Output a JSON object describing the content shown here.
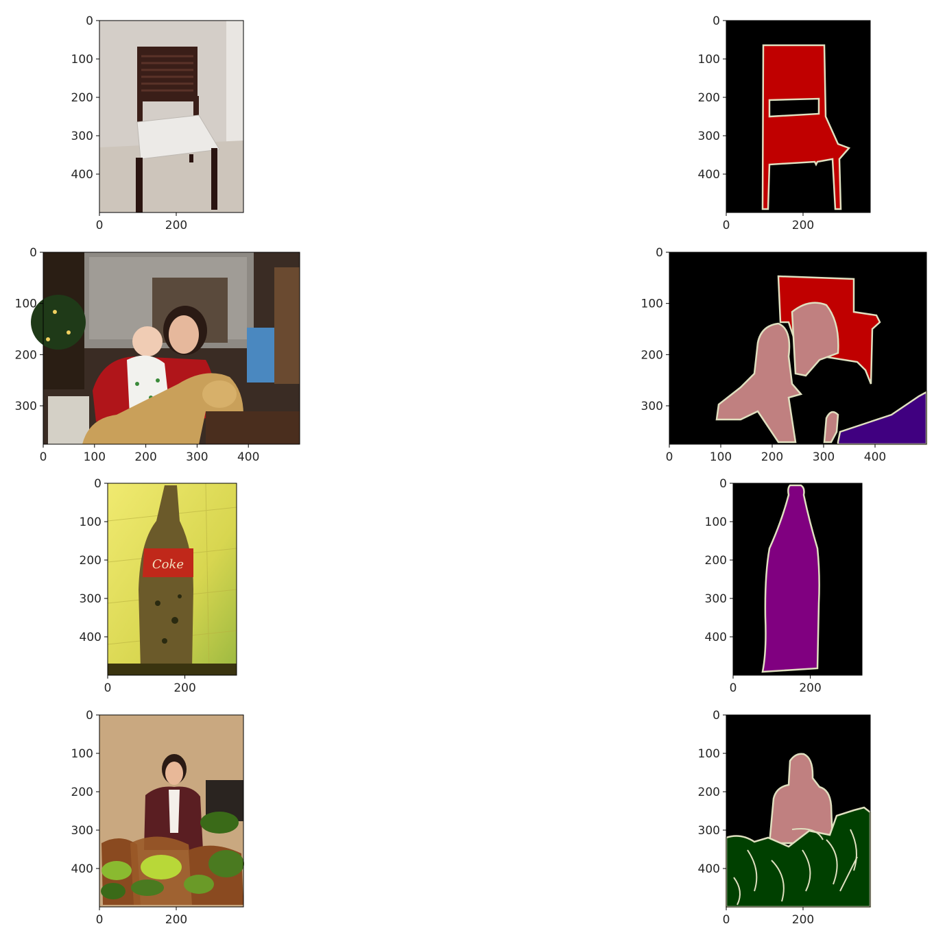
{
  "chart_data": [
    {
      "type": "image",
      "panel": "input-image",
      "content": "photo of a dark wooden chair with white seat against a wall",
      "xlim": [
        0,
        375
      ],
      "ylim": [
        500,
        0
      ],
      "xticks": [
        0,
        200
      ],
      "yticks": [
        0,
        100,
        200,
        300,
        400
      ],
      "colors": {
        "background": "#d8d2cc",
        "floor": "#cfc7bd",
        "wood": "#3a1e18",
        "seat": "#e8e6e3"
      }
    },
    {
      "type": "image",
      "panel": "segmentation-mask",
      "content": "segmentation mask: chair region",
      "xlim": [
        0,
        375
      ],
      "ylim": [
        500,
        0
      ],
      "xticks": [
        0,
        200
      ],
      "yticks": [
        0,
        100,
        200,
        300,
        400
      ],
      "classes": [
        {
          "color": "#c00000"
        }
      ],
      "colors": {
        "background": "#000000",
        "boundary": "#e0e0c0"
      }
    },
    {
      "type": "image",
      "panel": "input-image",
      "content": "photo of a woman holding a baby on a plush rocking horse in a living room",
      "xlim": [
        0,
        500
      ],
      "ylim": [
        375,
        0
      ],
      "xticks": [
        0,
        100,
        200,
        300,
        400
      ],
      "yticks": [
        0,
        100,
        200,
        300
      ],
      "colors": {
        "background": "#3a2c24",
        "curtain": "#9a9690",
        "red": "#b0151a",
        "horse": "#c9a05a"
      }
    },
    {
      "type": "image",
      "panel": "segmentation-mask",
      "content": "segmentation mask: chair, two persons, sofa region",
      "xlim": [
        0,
        500
      ],
      "ylim": [
        375,
        0
      ],
      "xticks": [
        0,
        100,
        200,
        300,
        400
      ],
      "yticks": [
        0,
        100,
        200,
        300
      ],
      "classes": [
        {
          "color": "#c00000"
        },
        {
          "color": "#c08080"
        },
        {
          "color": "#400080"
        }
      ],
      "colors": {
        "background": "#000000",
        "boundary": "#e0e0c0"
      }
    },
    {
      "type": "image",
      "panel": "input-image",
      "content": "photo of an old Coke bottle against a yellow tiled wall",
      "xlim": [
        0,
        334
      ],
      "ylim": [
        500,
        0
      ],
      "xticks": [
        0,
        200
      ],
      "yticks": [
        0,
        100,
        200,
        300,
        400
      ],
      "label_text": "Coke",
      "colors": {
        "background": "#e8e060",
        "bottle": "#6b5a2a",
        "label": "#c0281a"
      }
    },
    {
      "type": "image",
      "panel": "segmentation-mask",
      "content": "segmentation mask: bottle region",
      "xlim": [
        0,
        334
      ],
      "ylim": [
        500,
        0
      ],
      "xticks": [
        0,
        200
      ],
      "yticks": [
        0,
        100,
        200,
        300,
        400
      ],
      "classes": [
        {
          "color": "#800080"
        }
      ],
      "colors": {
        "background": "#000000",
        "boundary": "#e0e0c0"
      }
    },
    {
      "type": "image",
      "panel": "input-image",
      "content": "photo of a woman in a maroon jacket standing behind baskets of potted plants",
      "xlim": [
        0,
        375
      ],
      "ylim": [
        500,
        0
      ],
      "xticks": [
        0,
        200
      ],
      "yticks": [
        0,
        100,
        200,
        300,
        400
      ],
      "colors": {
        "background": "#c9a880",
        "jacket": "#5a1e22",
        "plants": "#4a7a20",
        "basket": "#8a4a20"
      }
    },
    {
      "type": "image",
      "panel": "segmentation-mask",
      "content": "segmentation mask: person and potted plant regions",
      "xlim": [
        0,
        375
      ],
      "ylim": [
        500,
        0
      ],
      "xticks": [
        0,
        200
      ],
      "yticks": [
        0,
        100,
        200,
        300,
        400
      ],
      "classes": [
        {
          "color": "#c08080"
        },
        {
          "color": "#004000"
        }
      ],
      "colors": {
        "background": "#000000",
        "boundary": "#e0e0c0"
      }
    }
  ]
}
